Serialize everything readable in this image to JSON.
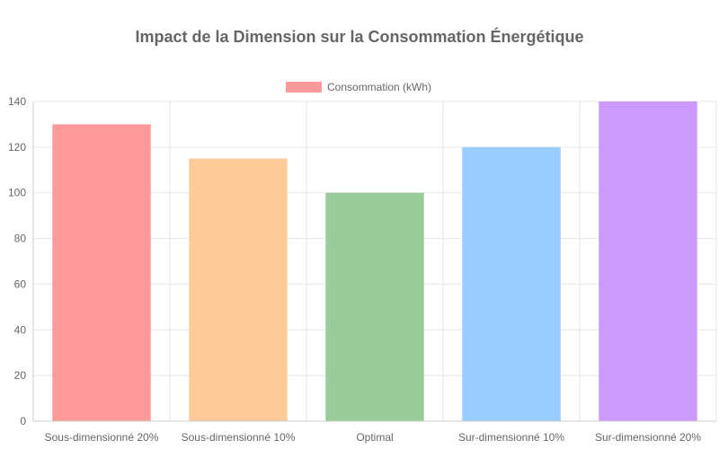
{
  "chart_data": {
    "type": "bar",
    "title": "Impact de la Dimension sur la Consommation Énergétique",
    "xlabel": "",
    "ylabel": "",
    "categories": [
      "Sous-dimensionné 20%",
      "Sous-dimensionné 10%",
      "Optimal",
      "Sur-dimensionné 10%",
      "Sur-dimensionné 20%"
    ],
    "series": [
      {
        "name": "Consommation (kWh)",
        "values": [
          130,
          115,
          100,
          120,
          140
        ],
        "colors": [
          "#ff9a9a",
          "#fecb98",
          "#99cc99",
          "#99ccff",
          "#cc99ff"
        ],
        "legend_color": "#ff9a9a"
      }
    ],
    "ylim": [
      0,
      140
    ],
    "yticks": [
      0,
      20,
      40,
      60,
      80,
      100,
      120,
      140
    ],
    "grid": true,
    "legend_position": "top-center"
  }
}
